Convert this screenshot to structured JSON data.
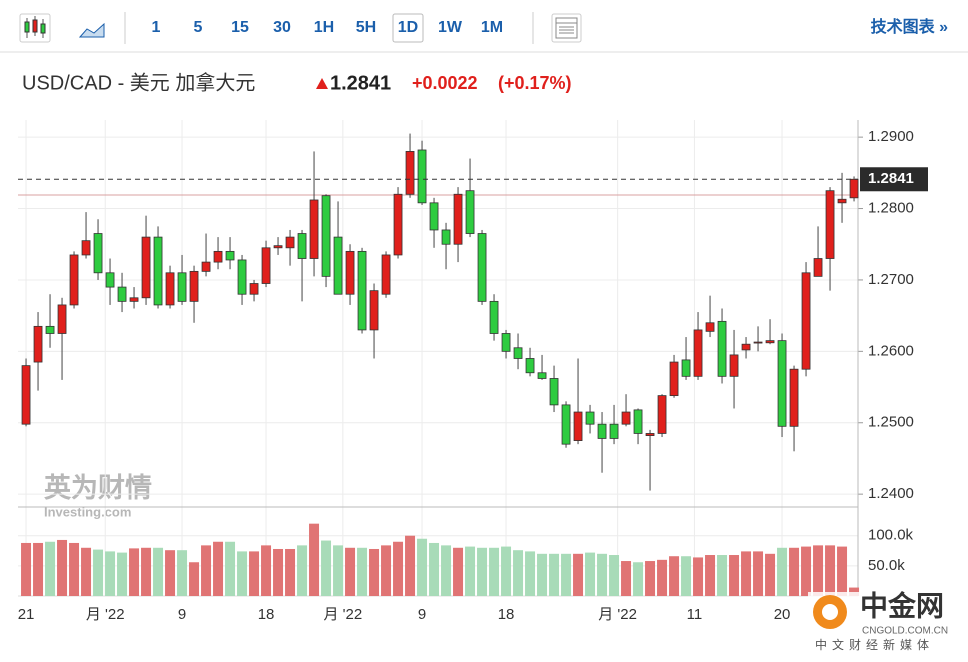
{
  "toolbar": {
    "intervals": [
      "1",
      "5",
      "15",
      "30",
      "1H",
      "5H",
      "1D",
      "1W",
      "1M"
    ],
    "link": "技术图表 »"
  },
  "header": {
    "pair": "USD/CAD - 美元 加拿大元",
    "price": "1.2841",
    "change": "+0.0022",
    "change_pct": "(+0.17%)"
  },
  "watermark": {
    "brand": "英为财情",
    "site": "Investing.com"
  },
  "logo": {
    "name": "中金网",
    "domain": "CNGOLD.COM.CN",
    "tagline": "中文财经新媒体"
  },
  "chart_data": {
    "type": "candlestick",
    "open": [
      1.2498,
      1.2585,
      1.2635,
      1.2625,
      1.2665,
      1.2735,
      1.2765,
      1.271,
      1.269,
      1.267,
      1.2675,
      1.276,
      1.2665,
      1.271,
      1.267,
      1.2712,
      1.2725,
      1.274,
      1.2728,
      1.268,
      1.2695,
      1.2745,
      1.2745,
      1.2765,
      1.273,
      1.2818,
      1.276,
      1.268,
      1.274,
      1.263,
      1.268,
      1.2735,
      1.282,
      1.2882,
      1.2808,
      1.277,
      1.275,
      1.2825,
      1.2765,
      1.267,
      1.2625,
      1.2605,
      1.259,
      1.257,
      1.2562,
      1.2525,
      1.2475,
      1.2515,
      1.2498,
      1.2498,
      1.2498,
      1.2518,
      1.2482,
      1.2485,
      1.2538,
      1.2588,
      1.2565,
      1.2628,
      1.2642,
      1.2565,
      1.2602,
      1.2612,
      1.2612,
      1.2615,
      1.2495,
      1.2575,
      1.2705,
      1.273,
      1.2808,
      1.2815
    ],
    "high": [
      1.259,
      1.2655,
      1.268,
      1.2675,
      1.274,
      1.2795,
      1.2785,
      1.273,
      1.271,
      1.269,
      1.279,
      1.2775,
      1.272,
      1.2735,
      1.272,
      1.2765,
      1.276,
      1.276,
      1.2735,
      1.27,
      1.2755,
      1.276,
      1.277,
      1.277,
      1.288,
      1.282,
      1.281,
      1.275,
      1.2745,
      1.2695,
      1.274,
      1.283,
      1.2905,
      1.2895,
      1.2815,
      1.278,
      1.283,
      1.287,
      1.277,
      1.268,
      1.263,
      1.2625,
      1.2605,
      1.2595,
      1.258,
      1.253,
      1.259,
      1.2525,
      1.2515,
      1.2525,
      1.254,
      1.252,
      1.249,
      1.254,
      1.2595,
      1.262,
      1.2655,
      1.2678,
      1.266,
      1.263,
      1.262,
      1.2635,
      1.2645,
      1.2625,
      1.258,
      1.2725,
      1.2775,
      1.283,
      1.285,
      1.2845
    ],
    "low": [
      1.2495,
      1.2545,
      1.2605,
      1.256,
      1.266,
      1.273,
      1.27,
      1.2665,
      1.2655,
      1.266,
      1.2665,
      1.266,
      1.266,
      1.2665,
      1.264,
      1.2705,
      1.2715,
      1.2715,
      1.2665,
      1.267,
      1.269,
      1.2735,
      1.272,
      1.267,
      1.2705,
      1.269,
      1.268,
      1.2665,
      1.2625,
      1.259,
      1.2675,
      1.273,
      1.2815,
      1.2805,
      1.2745,
      1.2715,
      1.2725,
      1.276,
      1.2665,
      1.2615,
      1.259,
      1.2575,
      1.2565,
      1.256,
      1.2515,
      1.2465,
      1.247,
      1.2485,
      1.243,
      1.247,
      1.2495,
      1.247,
      1.2405,
      1.248,
      1.2535,
      1.256,
      1.256,
      1.262,
      1.2555,
      1.252,
      1.259,
      1.26,
      1.261,
      1.248,
      1.246,
      1.2565,
      1.2705,
      1.2685,
      1.278,
      1.281
    ],
    "close": [
      1.258,
      1.2635,
      1.2625,
      1.2665,
      1.2735,
      1.2755,
      1.271,
      1.269,
      1.267,
      1.2675,
      1.276,
      1.2665,
      1.271,
      1.267,
      1.2712,
      1.2725,
      1.274,
      1.2728,
      1.268,
      1.2695,
      1.2745,
      1.2748,
      1.276,
      1.273,
      1.2812,
      1.2705,
      1.268,
      1.274,
      1.263,
      1.2685,
      1.2735,
      1.282,
      1.288,
      1.2808,
      1.277,
      1.275,
      1.282,
      1.2765,
      1.267,
      1.2625,
      1.26,
      1.259,
      1.257,
      1.2562,
      1.2525,
      1.247,
      1.2515,
      1.2498,
      1.2478,
      1.2478,
      1.2515,
      1.2485,
      1.2485,
      1.2538,
      1.2585,
      1.2565,
      1.263,
      1.264,
      1.2565,
      1.2595,
      1.261,
      1.2613,
      1.2615,
      1.2495,
      1.2575,
      1.271,
      1.273,
      1.2825,
      1.2813,
      1.2841
    ],
    "volume": [
      88000,
      88000,
      90000,
      93000,
      88000,
      80000,
      77000,
      74000,
      72000,
      79000,
      80000,
      80000,
      76000,
      76000,
      56000,
      84000,
      90000,
      90000,
      74000,
      74000,
      84000,
      78000,
      78000,
      84000,
      120000,
      92000,
      84000,
      80000,
      80000,
      78000,
      84000,
      90000,
      100000,
      95000,
      88000,
      84000,
      80000,
      82000,
      80000,
      80000,
      82000,
      76000,
      74000,
      70000,
      70000,
      70000,
      70000,
      72000,
      70000,
      68000,
      58000,
      56000,
      58000,
      60000,
      66000,
      66000,
      64000,
      68000,
      68000,
      68000,
      74000,
      74000,
      70000,
      80000,
      80000,
      82000,
      84000,
      84000,
      82000,
      14000
    ],
    "colors": {
      "up": "#e0201c",
      "down": "#2ecc40",
      "volume_up": "#e07474",
      "volume_down": "#a8dbb8",
      "prev_close": "#d9a0a0"
    },
    "prev_close": 1.2819,
    "xlim": [
      -0.67,
      69.33
    ],
    "xticks": [
      {
        "value": 0,
        "label": "21"
      },
      {
        "value": 6.6,
        "label": "月 '22"
      },
      {
        "value": 13,
        "label": "9"
      },
      {
        "value": 20,
        "label": "18"
      },
      {
        "value": 26.4,
        "label": "月 '22"
      },
      {
        "value": 33,
        "label": "9"
      },
      {
        "value": 40,
        "label": "18"
      },
      {
        "value": 49.3,
        "label": "月 '22"
      },
      {
        "value": 55.7,
        "label": "11"
      },
      {
        "value": 63,
        "label": "20"
      }
    ],
    "ylim": [
      1.2382,
      1.2924
    ],
    "yticks": [
      {
        "value": 1.29,
        "label": "1.2900"
      },
      {
        "value": 1.28,
        "label": "1.2800"
      },
      {
        "value": 1.27,
        "label": "1.2700"
      },
      {
        "value": 1.26,
        "label": "1.2600"
      },
      {
        "value": 1.25,
        "label": "1.2500"
      },
      {
        "value": 1.24,
        "label": "1.2400"
      }
    ],
    "volume_ylim": [
      0,
      146000
    ],
    "volume_yticks": [
      {
        "value": 100000,
        "label": "100.0k"
      },
      {
        "value": 50000,
        "label": "50.0k"
      }
    ],
    "grid": true
  }
}
